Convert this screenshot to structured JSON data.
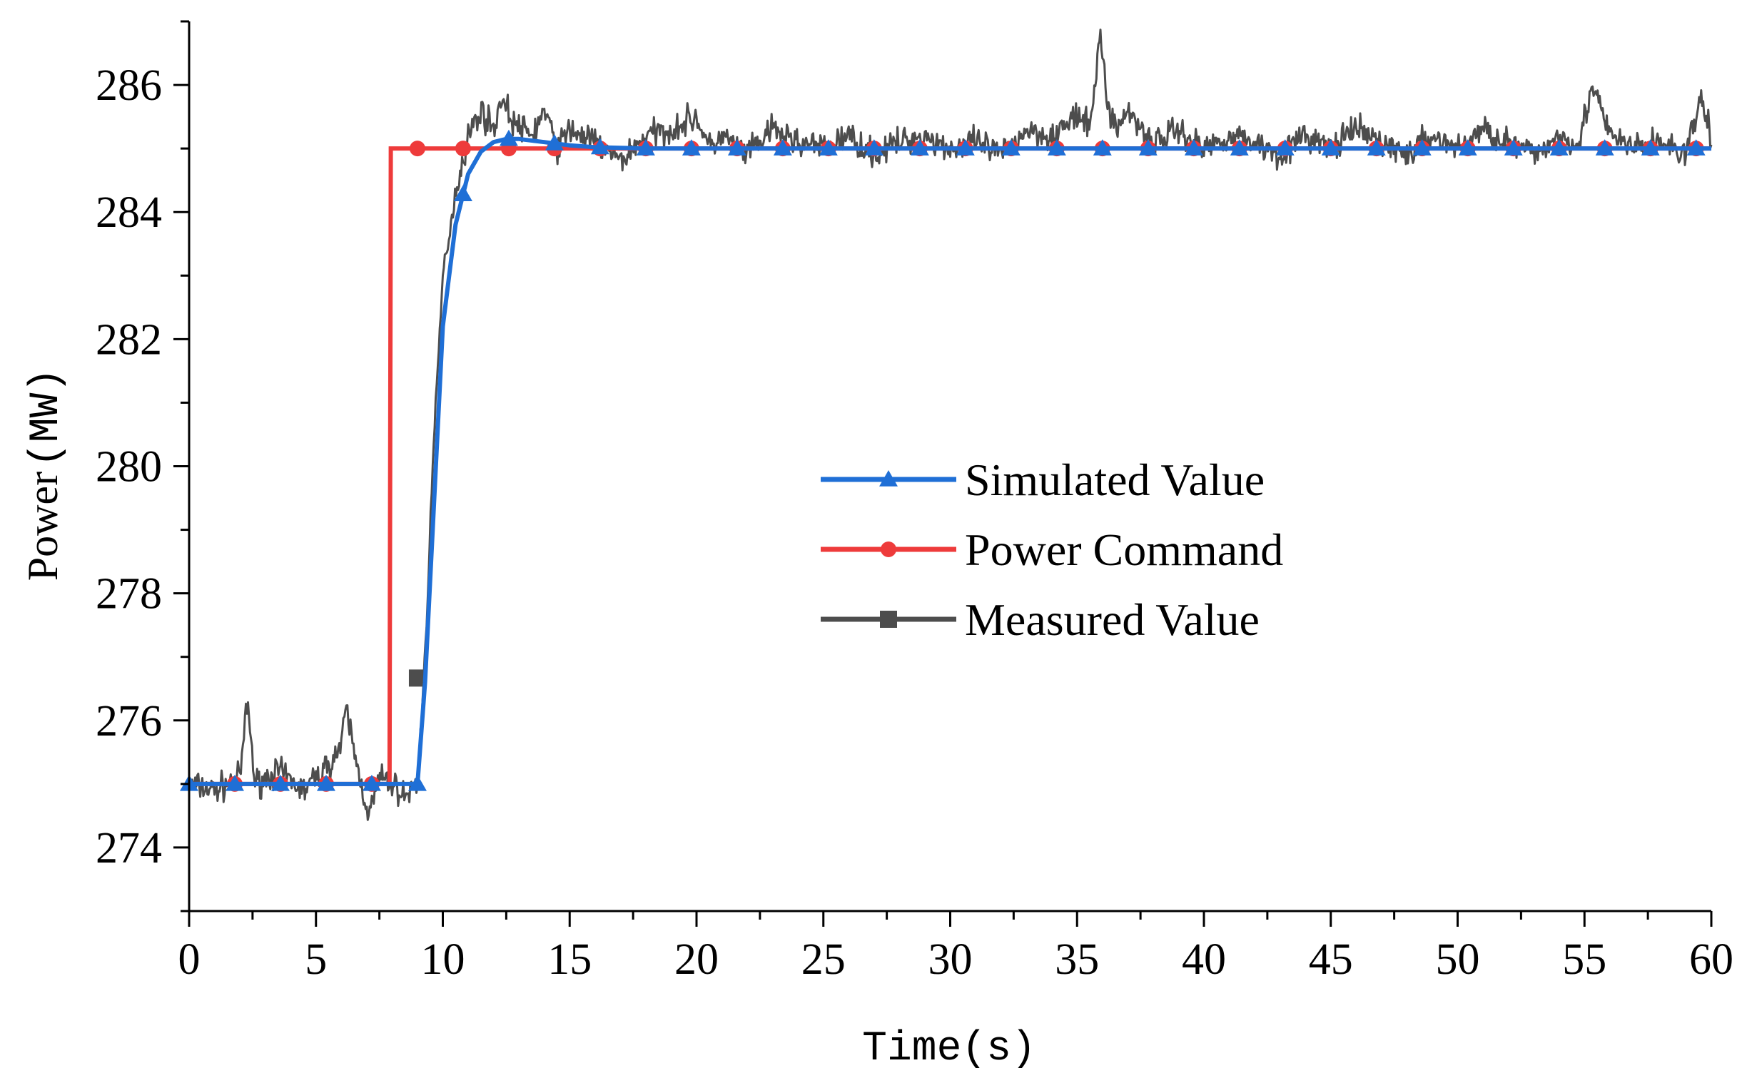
{
  "chart_data": {
    "type": "line",
    "title": "",
    "xlabel": "Time(s)",
    "ylabel": "Power",
    "ylabel_unit": "(MW)",
    "xlim": [
      0,
      60
    ],
    "ylim": [
      273,
      287
    ],
    "x_major_ticks": [
      0,
      5,
      10,
      15,
      20,
      25,
      30,
      35,
      40,
      45,
      50,
      55,
      60
    ],
    "x_tick_labels": [
      "0",
      "5",
      "10",
      "15",
      "20",
      "25",
      "30",
      "35",
      "40",
      "45",
      "50",
      "55",
      "60"
    ],
    "y_major_ticks": [
      274,
      276,
      278,
      280,
      282,
      284,
      286
    ],
    "y_tick_labels": [
      "274",
      "276",
      "278",
      "280",
      "282",
      "284",
      "286"
    ],
    "grid": false,
    "legend_position": "center-right",
    "series": [
      {
        "name": "Simulated Value",
        "color": "#1f6fd6",
        "marker": "triangle",
        "x": [
          0,
          9.0,
          9.3,
          9.6,
          10.0,
          10.5,
          11.0,
          11.5,
          12.0,
          12.5,
          13.0,
          14.0,
          15.0,
          16.0,
          18.0,
          20.0,
          25.0,
          30.0,
          35.0,
          40.0,
          45.0,
          50.0,
          55.0,
          60.0
        ],
        "y": [
          275.0,
          275.0,
          276.6,
          279.0,
          282.2,
          283.8,
          284.6,
          284.95,
          285.1,
          285.15,
          285.15,
          285.1,
          285.05,
          285.02,
          285.0,
          285.0,
          285.0,
          285.0,
          285.0,
          285.0,
          285.0,
          285.0,
          285.0,
          285.0
        ]
      },
      {
        "name": "Power Command",
        "color": "#ee3b3b",
        "marker": "circle",
        "x": [
          0,
          7.9,
          7.95,
          60.0
        ],
        "y": [
          275.0,
          275.0,
          285.0,
          285.0
        ]
      },
      {
        "name": "Measured Value",
        "color": "#4d4d4d",
        "marker": "square",
        "x": [
          0,
          1.0,
          2.0,
          2.3,
          2.6,
          3.5,
          4.5,
          5.5,
          6.0,
          6.2,
          6.6,
          7.1,
          7.5,
          8.0,
          8.5,
          9.0,
          9.3,
          9.6,
          10.0,
          10.5,
          11.0,
          11.5,
          12.0,
          12.3,
          12.8,
          13.5,
          14.0,
          14.5,
          15.0,
          16.0,
          17.0,
          18.0,
          19.0,
          20.0,
          20.5,
          21.0,
          22.0,
          23.0,
          24.0,
          25.0,
          26.0,
          27.0,
          28.0,
          29.0,
          30.0,
          31.0,
          32.0,
          33.0,
          34.0,
          35.0,
          35.5,
          35.9,
          36.2,
          36.6,
          37.0,
          38.0,
          39.0,
          40.0,
          41.0,
          42.0,
          43.0,
          44.0,
          45.0,
          46.0,
          47.0,
          48.0,
          49.0,
          50.0,
          51.0,
          52.0,
          53.0,
          54.0,
          54.8,
          55.3,
          56.0,
          57.0,
          58.0,
          59.0,
          59.6,
          60.0
        ],
        "y": [
          275.0,
          274.9,
          275.1,
          276.3,
          275.0,
          275.2,
          274.9,
          275.3,
          275.6,
          276.2,
          275.3,
          274.5,
          275.1,
          275.0,
          274.8,
          275.0,
          277.0,
          280.0,
          283.0,
          284.3,
          285.2,
          285.6,
          285.3,
          285.8,
          285.4,
          285.2,
          285.6,
          285.0,
          285.3,
          285.1,
          284.8,
          285.2,
          285.3,
          285.5,
          285.0,
          285.2,
          284.9,
          285.3,
          285.1,
          285.0,
          285.2,
          284.9,
          285.1,
          285.2,
          285.0,
          285.1,
          284.9,
          285.3,
          285.2,
          285.5,
          285.3,
          286.8,
          285.7,
          285.3,
          285.6,
          285.1,
          285.3,
          285.0,
          285.2,
          285.1,
          284.9,
          285.2,
          285.0,
          285.3,
          285.1,
          284.9,
          285.2,
          285.0,
          285.3,
          285.1,
          284.9,
          285.2,
          285.1,
          286.0,
          285.2,
          285.0,
          285.1,
          284.9,
          285.8,
          285.1
        ]
      }
    ],
    "legend": [
      {
        "name": "Simulated Value",
        "color": "#1f6fd6",
        "marker": "triangle"
      },
      {
        "name": "Power Command",
        "color": "#ee3b3b",
        "marker": "circle"
      },
      {
        "name": "Measured Value",
        "color": "#4d4d4d",
        "marker": "square"
      }
    ]
  }
}
